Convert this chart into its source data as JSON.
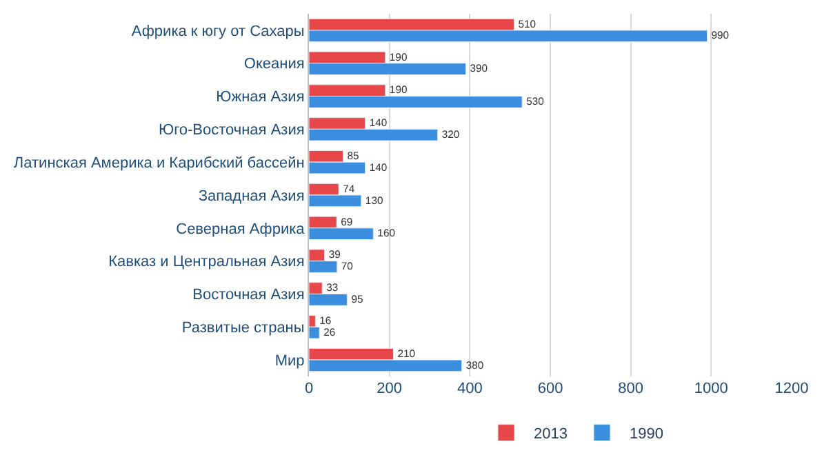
{
  "chart_data": {
    "type": "bar",
    "orientation": "horizontal",
    "categories": [
      "Африка к югу от Сахары",
      "Океания",
      "Южная Азия",
      "Юго-Восточная Азия",
      "Латинская Америка и Карибский бассейн",
      "Западная Азия",
      "Северная Африка",
      "Кавказ и Центральная Азия",
      "Восточная Азия",
      "Развитые страны",
      "Мир"
    ],
    "series": [
      {
        "name": "2013",
        "color": "#e8474a",
        "values": [
          510,
          190,
          190,
          140,
          85,
          74,
          69,
          39,
          33,
          16,
          210
        ]
      },
      {
        "name": "1990",
        "color": "#3b8ede",
        "values": [
          990,
          390,
          530,
          320,
          140,
          130,
          160,
          70,
          95,
          26,
          380
        ]
      }
    ],
    "xlim": [
      0,
      1200
    ],
    "xticks": [
      0,
      200,
      400,
      600,
      800,
      1000,
      1200
    ],
    "grid": "x",
    "legend": "bottom",
    "data_labels": true
  }
}
